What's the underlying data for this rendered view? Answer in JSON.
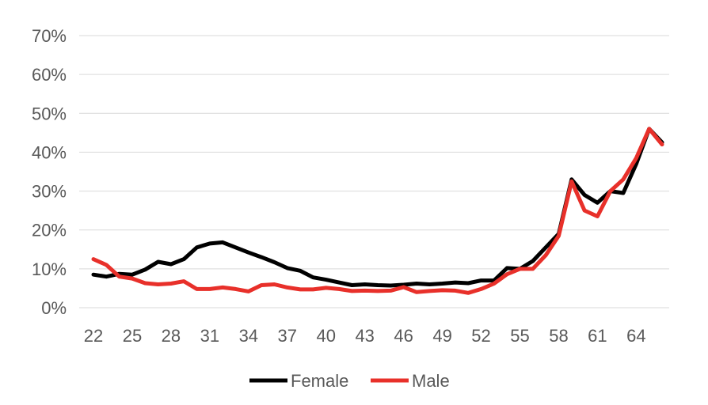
{
  "chart_data": {
    "type": "line",
    "x": [
      22,
      23,
      24,
      25,
      26,
      27,
      28,
      29,
      30,
      31,
      32,
      33,
      34,
      35,
      36,
      37,
      38,
      39,
      40,
      41,
      42,
      43,
      44,
      45,
      46,
      47,
      48,
      49,
      50,
      51,
      52,
      53,
      54,
      55,
      56,
      57,
      58,
      59,
      60,
      61,
      62,
      63,
      64,
      65,
      66
    ],
    "x_tick_labels": [
      "22",
      "25",
      "28",
      "31",
      "34",
      "37",
      "40",
      "43",
      "46",
      "49",
      "52",
      "55",
      "58",
      "61",
      "64"
    ],
    "y_tick_labels": [
      "0%",
      "10%",
      "20%",
      "30%",
      "40%",
      "50%",
      "60%",
      "70%"
    ],
    "ylim": [
      0,
      70
    ],
    "y_unit": "%",
    "grid": "horizontal",
    "legend_position": "bottom",
    "series": [
      {
        "name": "Female",
        "color": "#000000",
        "values": [
          8.5,
          8.0,
          8.7,
          8.5,
          9.8,
          11.8,
          11.2,
          12.5,
          15.5,
          16.5,
          16.8,
          15.5,
          14.2,
          13.0,
          11.7,
          10.2,
          9.5,
          7.8,
          7.2,
          6.5,
          5.8,
          6.0,
          5.8,
          5.7,
          5.9,
          6.2,
          6.0,
          6.2,
          6.5,
          6.3,
          7.0,
          7.0,
          10.2,
          10.0,
          12.0,
          15.5,
          19.0,
          33.0,
          29.0,
          27.0,
          30.0,
          29.5,
          37.0,
          46.0,
          42.5
        ]
      },
      {
        "name": "Male",
        "color": "#e8302a",
        "values": [
          12.5,
          11.0,
          8.0,
          7.5,
          6.3,
          6.0,
          6.2,
          6.8,
          4.8,
          4.8,
          5.2,
          4.8,
          4.2,
          5.8,
          6.0,
          5.2,
          4.7,
          4.7,
          5.1,
          4.8,
          4.3,
          4.4,
          4.3,
          4.4,
          5.3,
          4.0,
          4.3,
          4.5,
          4.4,
          3.8,
          4.8,
          6.2,
          8.6,
          10.0,
          10.0,
          13.5,
          18.5,
          32.5,
          25.0,
          23.5,
          30.0,
          33.0,
          38.5,
          46.0,
          42.0
        ]
      }
    ]
  }
}
